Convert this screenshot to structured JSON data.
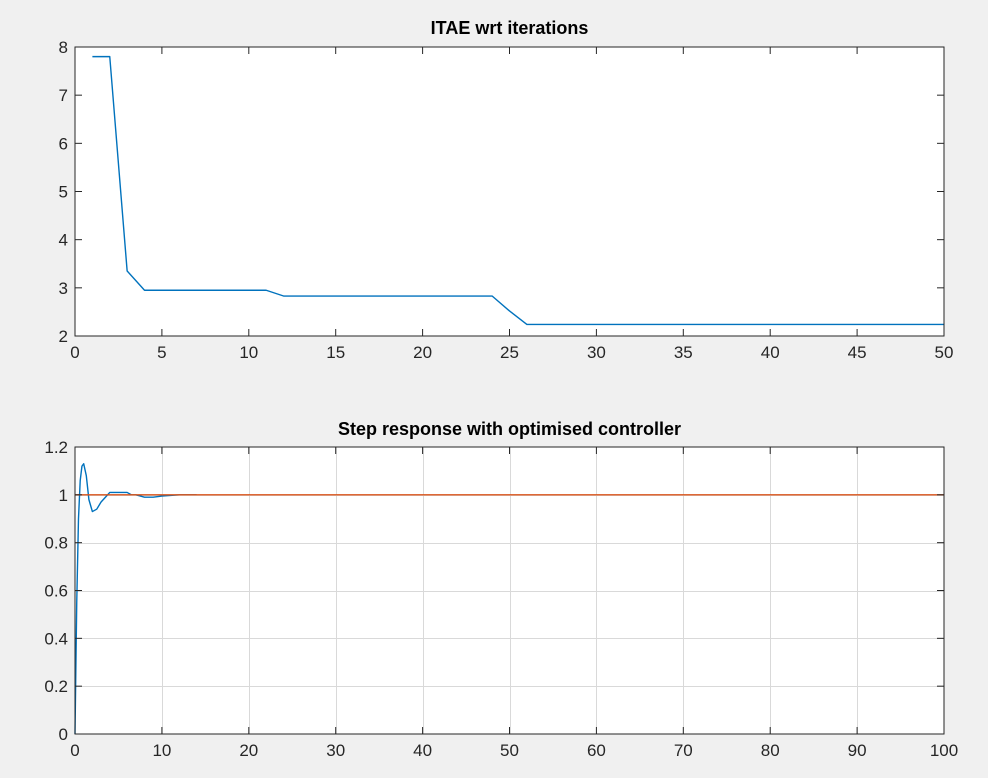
{
  "window": {
    "background": "#f0f0f0"
  },
  "chart_data": [
    {
      "type": "line",
      "title": "ITAE wrt iterations",
      "xlabel": "",
      "ylabel": "",
      "xlim": [
        0,
        50
      ],
      "ylim": [
        2,
        8
      ],
      "xticks": [
        0,
        5,
        10,
        15,
        20,
        25,
        30,
        35,
        40,
        45,
        50
      ],
      "xtick_labels": [
        "0",
        "5",
        "10",
        "15",
        "20",
        "25",
        "30",
        "35",
        "40",
        "45",
        "50"
      ],
      "yticks": [
        2,
        3,
        4,
        5,
        6,
        7,
        8
      ],
      "ytick_labels": [
        "2",
        "3",
        "4",
        "5",
        "6",
        "7",
        "8"
      ],
      "grid": false,
      "series": [
        {
          "color": "#0072bd",
          "x": [
            1,
            2,
            3,
            4,
            5,
            6,
            7,
            8,
            9,
            10,
            11,
            12,
            13,
            14,
            15,
            16,
            17,
            18,
            19,
            20,
            21,
            22,
            23,
            24,
            25,
            26,
            27,
            28,
            29,
            30,
            31,
            32,
            33,
            34,
            35,
            36,
            37,
            38,
            39,
            40,
            41,
            42,
            43,
            44,
            45,
            46,
            47,
            48,
            49,
            50
          ],
          "y": [
            7.8,
            7.8,
            3.35,
            2.95,
            2.95,
            2.95,
            2.95,
            2.95,
            2.95,
            2.95,
            2.95,
            2.83,
            2.83,
            2.83,
            2.83,
            2.83,
            2.83,
            2.83,
            2.83,
            2.83,
            2.83,
            2.83,
            2.83,
            2.83,
            2.52,
            2.24,
            2.24,
            2.24,
            2.24,
            2.24,
            2.24,
            2.24,
            2.24,
            2.24,
            2.24,
            2.24,
            2.24,
            2.24,
            2.24,
            2.24,
            2.24,
            2.24,
            2.24,
            2.24,
            2.24,
            2.24,
            2.24,
            2.24,
            2.24,
            2.24
          ]
        }
      ]
    },
    {
      "type": "line",
      "title": "Step response with optimised controller",
      "xlabel": "",
      "ylabel": "",
      "xlim": [
        0,
        100
      ],
      "ylim": [
        0,
        1.2
      ],
      "xticks": [
        0,
        10,
        20,
        30,
        40,
        50,
        60,
        70,
        80,
        90,
        100
      ],
      "xtick_labels": [
        "0",
        "10",
        "20",
        "30",
        "40",
        "50",
        "60",
        "70",
        "80",
        "90",
        "100"
      ],
      "yticks": [
        0,
        0.2,
        0.4,
        0.6,
        0.8,
        1,
        1.2
      ],
      "ytick_labels": [
        "0",
        "0.2",
        "0.4",
        "0.6",
        "0.8",
        "1",
        "1.2"
      ],
      "grid": true,
      "series": [
        {
          "color": "#0072bd",
          "x": [
            0,
            0.2,
            0.4,
            0.6,
            0.8,
            1.0,
            1.3,
            1.6,
            2.0,
            2.5,
            3.0,
            3.5,
            4.0,
            5.0,
            6.0,
            6.5,
            7.0,
            8.0,
            9.0,
            10.0,
            12.0,
            14.0
          ],
          "y": [
            0,
            0.55,
            0.9,
            1.06,
            1.12,
            1.13,
            1.08,
            0.98,
            0.93,
            0.94,
            0.97,
            0.99,
            1.01,
            1.01,
            1.01,
            1.0,
            1.0,
            0.99,
            0.99,
            0.995,
            1.0,
            1.0
          ]
        },
        {
          "color": "#d95319",
          "x": [
            0,
            100
          ],
          "y": [
            1,
            1
          ]
        }
      ]
    }
  ]
}
